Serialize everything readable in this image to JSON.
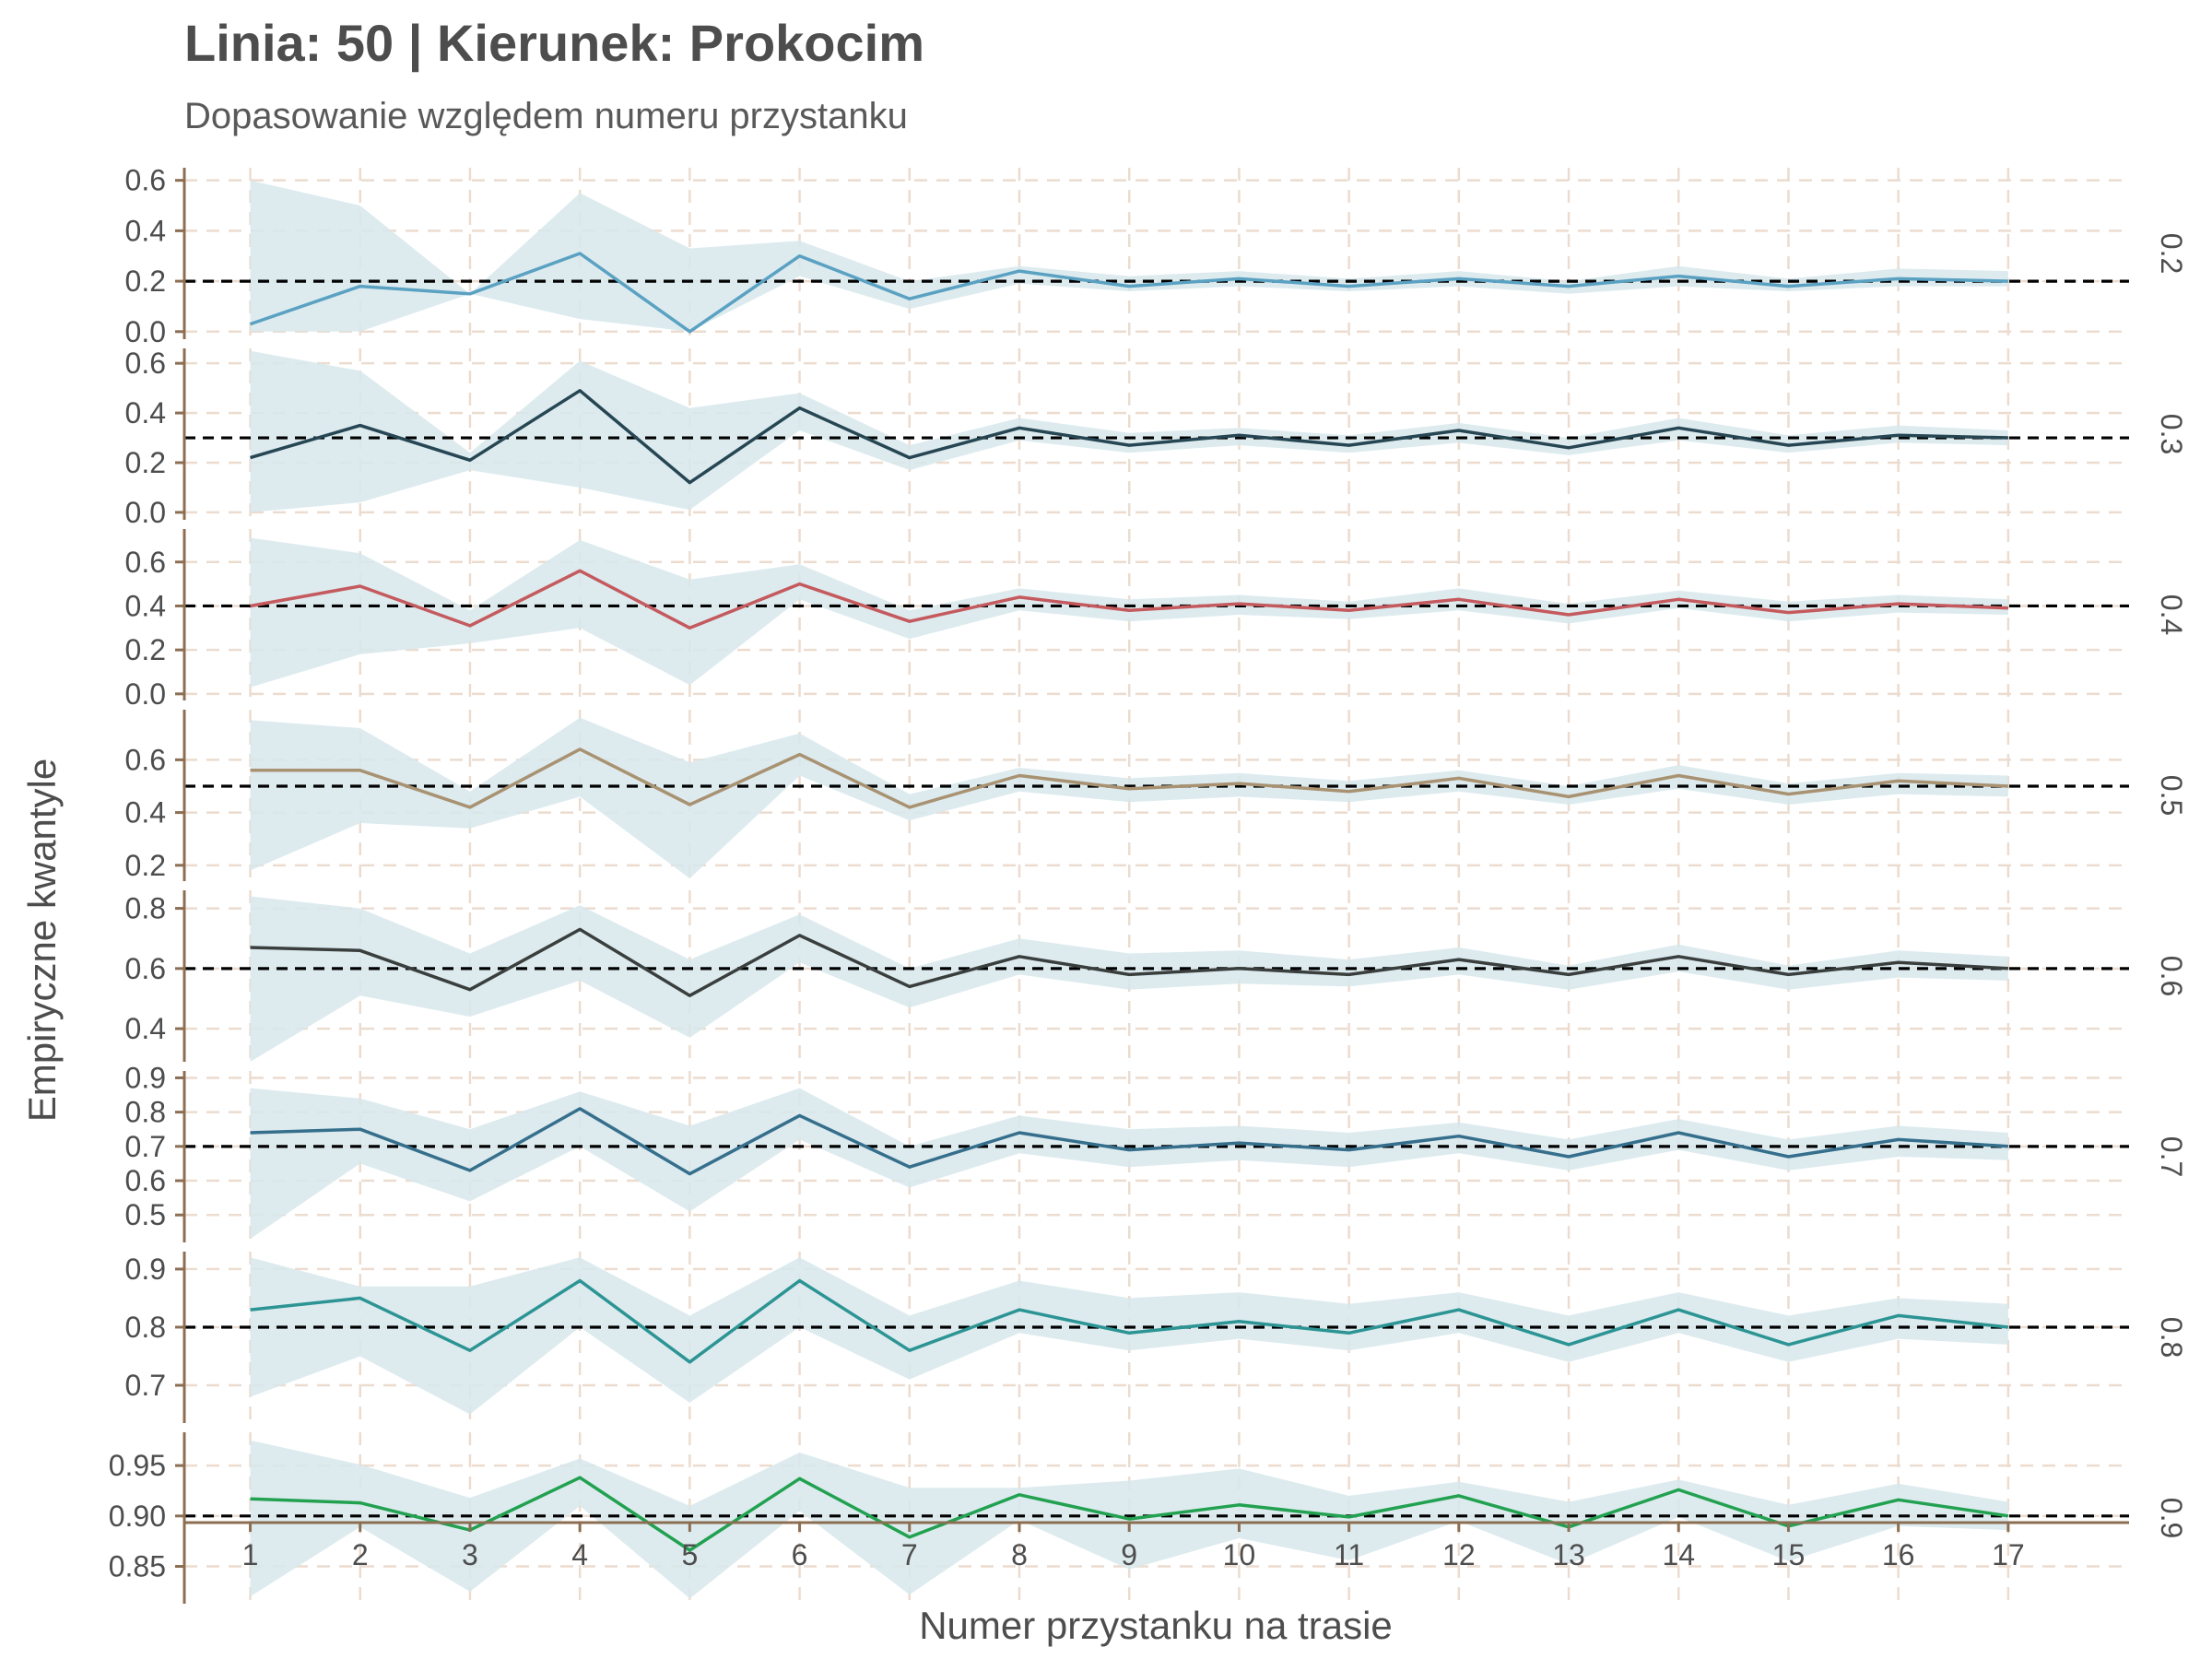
{
  "chart_data": {
    "type": "line",
    "title": "Linia: 50 | Kierunek: Prokocim",
    "subtitle": "Dopasowanie względem numeru przystanku",
    "xlabel": "Numer przystanku na trasie",
    "ylabel": "Empiryczne kwantyle",
    "x": [
      "1",
      "2",
      "3",
      "4",
      "5",
      "6",
      "7",
      "8",
      "9",
      "10",
      "11",
      "12",
      "13",
      "14",
      "15",
      "16",
      "17"
    ],
    "xlim": [
      0.4,
      18.1
    ],
    "band_color": "#d7e7ec",
    "grid_color": "#ecdccf",
    "axis_color": "#8c6e52",
    "reference_line_color": "#000000",
    "panels": [
      {
        "strip": "0.2",
        "quantile": 0.2,
        "color": "#5aa1c2",
        "ylim": [
          -0.03,
          0.65
        ],
        "yticks": [
          "0.0",
          "0.2",
          "0.4",
          "0.6"
        ],
        "ytick_values": [
          0.0,
          0.2,
          0.4,
          0.6
        ],
        "values": [
          0.03,
          0.18,
          0.15,
          0.31,
          0.0,
          0.3,
          0.13,
          0.24,
          0.18,
          0.21,
          0.18,
          0.21,
          0.18,
          0.22,
          0.18,
          0.21,
          0.2
        ],
        "band_lower": [
          0.0,
          0.0,
          0.15,
          0.05,
          0.0,
          0.22,
          0.09,
          0.19,
          0.16,
          0.18,
          0.16,
          0.18,
          0.15,
          0.18,
          0.16,
          0.18,
          0.18
        ],
        "band_upper": [
          0.6,
          0.5,
          0.15,
          0.55,
          0.33,
          0.36,
          0.2,
          0.26,
          0.22,
          0.24,
          0.21,
          0.24,
          0.2,
          0.26,
          0.21,
          0.25,
          0.24
        ]
      },
      {
        "strip": "0.3",
        "quantile": 0.3,
        "color": "#274653",
        "ylim": [
          -0.03,
          0.66
        ],
        "yticks": [
          "0.0",
          "0.2",
          "0.4",
          "0.6"
        ],
        "ytick_values": [
          0.0,
          0.2,
          0.4,
          0.6
        ],
        "values": [
          0.22,
          0.35,
          0.21,
          0.49,
          0.12,
          0.42,
          0.22,
          0.34,
          0.27,
          0.31,
          0.27,
          0.33,
          0.26,
          0.34,
          0.27,
          0.31,
          0.3
        ],
        "band_lower": [
          0.0,
          0.04,
          0.17,
          0.1,
          0.01,
          0.33,
          0.17,
          0.29,
          0.24,
          0.27,
          0.24,
          0.28,
          0.23,
          0.29,
          0.24,
          0.28,
          0.27
        ],
        "band_upper": [
          0.65,
          0.57,
          0.24,
          0.61,
          0.42,
          0.48,
          0.27,
          0.38,
          0.32,
          0.34,
          0.31,
          0.36,
          0.3,
          0.38,
          0.31,
          0.35,
          0.33
        ]
      },
      {
        "strip": "0.4",
        "quantile": 0.4,
        "color": "#c45a5e",
        "ylim": [
          -0.03,
          0.75
        ],
        "yticks": [
          "0.0",
          "0.2",
          "0.4",
          "0.6"
        ],
        "ytick_values": [
          0.0,
          0.2,
          0.4,
          0.6
        ],
        "values": [
          0.4,
          0.49,
          0.31,
          0.56,
          0.3,
          0.5,
          0.33,
          0.44,
          0.38,
          0.41,
          0.38,
          0.43,
          0.36,
          0.43,
          0.37,
          0.41,
          0.39
        ],
        "band_lower": [
          0.03,
          0.18,
          0.23,
          0.3,
          0.04,
          0.43,
          0.25,
          0.38,
          0.33,
          0.36,
          0.34,
          0.38,
          0.32,
          0.39,
          0.33,
          0.37,
          0.36
        ],
        "band_upper": [
          0.71,
          0.64,
          0.38,
          0.7,
          0.52,
          0.59,
          0.38,
          0.48,
          0.43,
          0.45,
          0.42,
          0.48,
          0.41,
          0.47,
          0.42,
          0.45,
          0.43
        ]
      },
      {
        "strip": "0.5",
        "quantile": 0.5,
        "color": "#a89272",
        "ylim": [
          0.14,
          0.79
        ],
        "yticks": [
          "0.2",
          "0.4",
          "0.6"
        ],
        "ytick_values": [
          0.2,
          0.4,
          0.6
        ],
        "values": [
          0.56,
          0.56,
          0.42,
          0.64,
          0.43,
          0.62,
          0.42,
          0.54,
          0.49,
          0.51,
          0.48,
          0.53,
          0.46,
          0.54,
          0.47,
          0.52,
          0.5
        ],
        "band_lower": [
          0.18,
          0.36,
          0.34,
          0.46,
          0.15,
          0.54,
          0.37,
          0.48,
          0.44,
          0.46,
          0.44,
          0.48,
          0.43,
          0.49,
          0.43,
          0.47,
          0.46
        ],
        "band_upper": [
          0.75,
          0.72,
          0.48,
          0.76,
          0.59,
          0.7,
          0.47,
          0.57,
          0.53,
          0.55,
          0.52,
          0.56,
          0.5,
          0.58,
          0.51,
          0.55,
          0.54
        ]
      },
      {
        "strip": "0.6",
        "quantile": 0.6,
        "color": "#3a3f3e",
        "ylim": [
          0.29,
          0.86
        ],
        "yticks": [
          "0.4",
          "0.6",
          "0.8"
        ],
        "ytick_values": [
          0.4,
          0.6,
          0.8
        ],
        "values": [
          0.67,
          0.66,
          0.53,
          0.73,
          0.51,
          0.71,
          0.54,
          0.64,
          0.58,
          0.6,
          0.58,
          0.63,
          0.58,
          0.64,
          0.58,
          0.62,
          0.6
        ],
        "band_lower": [
          0.29,
          0.51,
          0.44,
          0.56,
          0.37,
          0.62,
          0.47,
          0.58,
          0.53,
          0.55,
          0.54,
          0.58,
          0.53,
          0.59,
          0.53,
          0.57,
          0.56
        ],
        "band_upper": [
          0.84,
          0.8,
          0.65,
          0.81,
          0.63,
          0.78,
          0.6,
          0.7,
          0.65,
          0.66,
          0.63,
          0.67,
          0.61,
          0.68,
          0.61,
          0.66,
          0.64
        ]
      },
      {
        "strip": "0.7",
        "quantile": 0.7,
        "color": "#366f8c",
        "ylim": [
          0.42,
          0.92
        ],
        "yticks": [
          "0.5",
          "0.6",
          "0.7",
          "0.8",
          "0.9"
        ],
        "ytick_values": [
          0.5,
          0.6,
          0.7,
          0.8,
          0.9
        ],
        "values": [
          0.74,
          0.75,
          0.63,
          0.81,
          0.62,
          0.79,
          0.64,
          0.74,
          0.69,
          0.71,
          0.69,
          0.73,
          0.67,
          0.74,
          0.67,
          0.72,
          0.7
        ],
        "band_lower": [
          0.43,
          0.65,
          0.54,
          0.7,
          0.51,
          0.72,
          0.58,
          0.68,
          0.64,
          0.66,
          0.64,
          0.68,
          0.63,
          0.69,
          0.63,
          0.67,
          0.66
        ],
        "band_upper": [
          0.87,
          0.84,
          0.75,
          0.86,
          0.76,
          0.87,
          0.7,
          0.79,
          0.75,
          0.76,
          0.74,
          0.77,
          0.72,
          0.78,
          0.72,
          0.76,
          0.74
        ]
      },
      {
        "strip": "0.8",
        "quantile": 0.8,
        "color": "#2d9494",
        "ylim": [
          0.635,
          0.93
        ],
        "yticks": [
          "0.7",
          "0.8",
          "0.9"
        ],
        "ytick_values": [
          0.7,
          0.8,
          0.9
        ],
        "values": [
          0.83,
          0.85,
          0.76,
          0.88,
          0.74,
          0.88,
          0.76,
          0.83,
          0.79,
          0.81,
          0.79,
          0.83,
          0.77,
          0.83,
          0.77,
          0.82,
          0.8
        ],
        "band_lower": [
          0.68,
          0.75,
          0.65,
          0.8,
          0.67,
          0.8,
          0.71,
          0.79,
          0.76,
          0.78,
          0.76,
          0.79,
          0.74,
          0.79,
          0.74,
          0.78,
          0.77
        ],
        "band_upper": [
          0.92,
          0.87,
          0.87,
          0.92,
          0.82,
          0.92,
          0.82,
          0.88,
          0.85,
          0.86,
          0.84,
          0.86,
          0.82,
          0.86,
          0.82,
          0.85,
          0.84
        ]
      },
      {
        "strip": "0.9",
        "quantile": 0.9,
        "color": "#22a150",
        "ylim": [
          0.813,
          0.983
        ],
        "yticks": [
          "0.85",
          "0.90",
          "0.95"
        ],
        "ytick_values": [
          0.85,
          0.9,
          0.95
        ],
        "values": [
          0.917,
          0.913,
          0.886,
          0.938,
          0.866,
          0.937,
          0.879,
          0.921,
          0.897,
          0.911,
          0.899,
          0.92,
          0.889,
          0.926,
          0.89,
          0.916,
          0.9
        ],
        "band_lower": [
          0.82,
          0.889,
          0.825,
          0.91,
          0.818,
          0.905,
          0.822,
          0.896,
          0.847,
          0.878,
          0.856,
          0.895,
          0.852,
          0.899,
          0.855,
          0.89,
          0.886
        ],
        "band_upper": [
          0.975,
          0.951,
          0.918,
          0.957,
          0.91,
          0.963,
          0.928,
          0.928,
          0.935,
          0.947,
          0.92,
          0.934,
          0.914,
          0.936,
          0.911,
          0.932,
          0.914
        ]
      }
    ]
  }
}
